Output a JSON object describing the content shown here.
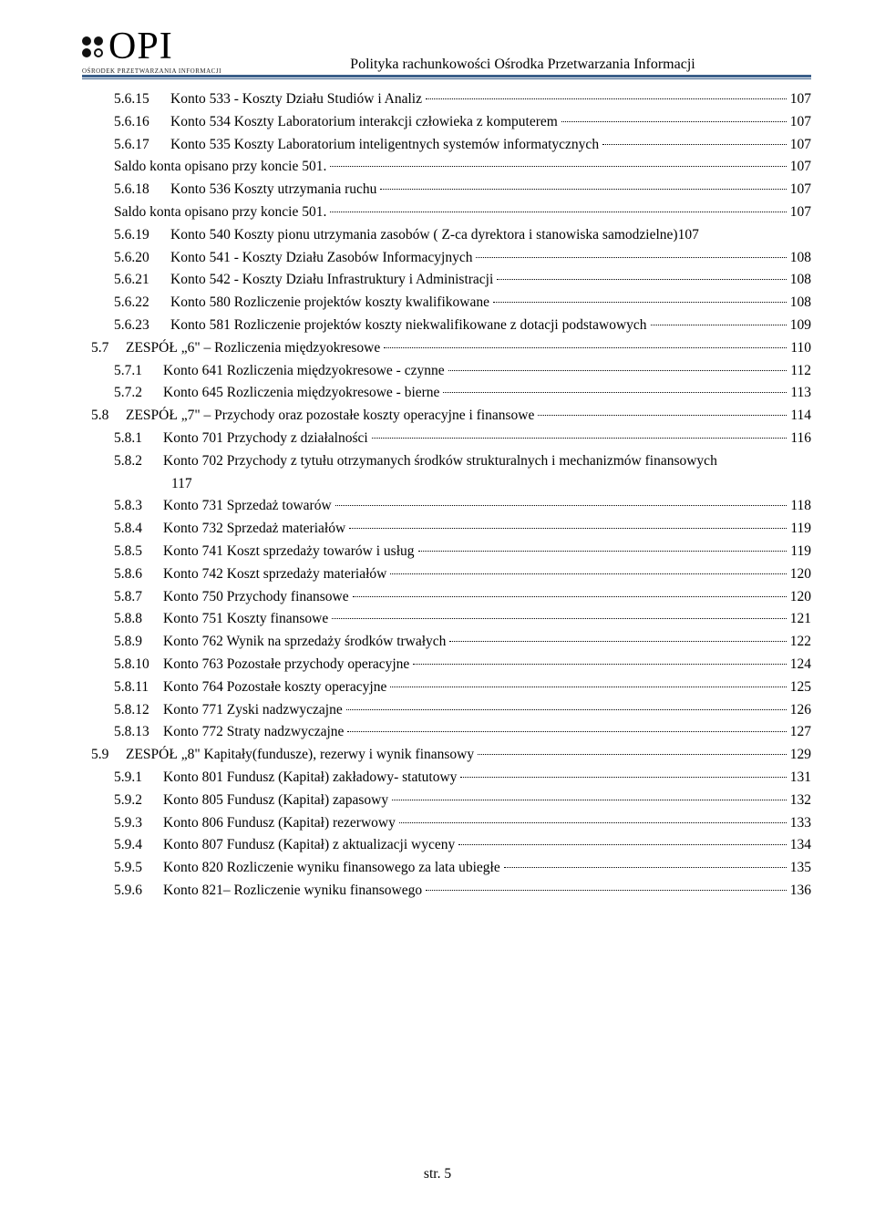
{
  "colors": {
    "rule": "#3b5f8a",
    "text": "#000000",
    "bg": "#ffffff"
  },
  "header": {
    "logo_letters": "OPI",
    "logo_sub": "OŚRODEK PRZETWARZANIA INFORMACJI",
    "title": "Polityka rachunkowości Ośrodka Przetwarzania Informacji"
  },
  "toc": [
    {
      "indent": 2,
      "num": "5.6.15",
      "label": "Konto 533 - Koszty Działu Studiów i Analiz",
      "page": "107"
    },
    {
      "indent": 2,
      "num": "5.6.16",
      "label": "Konto 534 Koszty Laboratorium interakcji człowieka z komputerem",
      "page": "107"
    },
    {
      "indent": 2,
      "num": "5.6.17",
      "label": "Konto 535 Koszty Laboratorium inteligentnych systemów informatycznych",
      "page": "107"
    },
    {
      "indent": 2,
      "num": "",
      "label": "Saldo konta opisano przy koncie 501.",
      "page": "107",
      "noNum": true
    },
    {
      "indent": 2,
      "num": "5.6.18",
      "label": "Konto 536 Koszty utrzymania ruchu",
      "page": "107"
    },
    {
      "indent": 2,
      "num": "",
      "label": "Saldo konta opisano przy koncie 501.",
      "page": "107",
      "noNum": true
    },
    {
      "indent": 2,
      "num": "5.6.19",
      "label": "Konto 540 Koszty pionu utrzymania zasobów ( Z-ca dyrektora i stanowiska samodzielne)",
      "page": "107",
      "noDots": true
    },
    {
      "indent": 2,
      "num": "5.6.20",
      "label": "Konto 541 - Koszty Działu Zasobów Informacyjnych",
      "page": "108"
    },
    {
      "indent": 2,
      "num": "5.6.21",
      "label": "Konto 542 - Koszty Działu Infrastruktury i Administracji",
      "page": "108"
    },
    {
      "indent": 2,
      "num": "5.6.22",
      "label": "Konto 580 Rozliczenie projektów koszty kwalifikowane",
      "page": "108"
    },
    {
      "indent": 2,
      "num": "5.6.23",
      "label": "Konto 581 Rozliczenie projektów koszty niekwalifikowane z dotacji podstawowych",
      "page": "109"
    },
    {
      "indent": 0,
      "num": "5.7",
      "label": "ZESPÓŁ „6\" – Rozliczenia międzyokresowe",
      "page": "110"
    },
    {
      "indent": 1,
      "num": "5.7.1",
      "label": "Konto 641 Rozliczenia międzyokresowe - czynne",
      "page": "112"
    },
    {
      "indent": 1,
      "num": "5.7.2",
      "label": "Konto 645 Rozliczenia międzyokresowe - bierne",
      "page": "113"
    },
    {
      "indent": 0,
      "num": "5.8",
      "label": "ZESPÓŁ „7\" – Przychody oraz pozostałe koszty operacyjne i finansowe",
      "page": "114"
    },
    {
      "indent": 1,
      "num": "5.8.1",
      "label": "Konto 701 Przychody z działalności",
      "page": "116"
    },
    {
      "indent": 1,
      "num": "5.8.2",
      "label": "Konto 702 Przychody z tytułu otrzymanych środków strukturalnych i mechanizmów finansowych",
      "page": "",
      "noDots": true
    },
    {
      "indent": -1,
      "num": "",
      "label": "117",
      "page": "",
      "textOnly": true
    },
    {
      "indent": 1,
      "num": "5.8.3",
      "label": "Konto 731 Sprzedaż towarów",
      "page": "118"
    },
    {
      "indent": 1,
      "num": "5.8.4",
      "label": "Konto 732 Sprzedaż materiałów",
      "page": "119"
    },
    {
      "indent": 1,
      "num": "5.8.5",
      "label": "Konto 741 Koszt sprzedaży towarów i usług",
      "page": "119"
    },
    {
      "indent": 1,
      "num": "5.8.6",
      "label": "Konto 742 Koszt sprzedaży materiałów",
      "page": "120"
    },
    {
      "indent": 1,
      "num": "5.8.7",
      "label": "Konto 750 Przychody finansowe",
      "page": "120"
    },
    {
      "indent": 1,
      "num": "5.8.8",
      "label": "Konto 751 Koszty finansowe",
      "page": "121"
    },
    {
      "indent": 1,
      "num": "5.8.9",
      "label": "Konto 762 Wynik na sprzedaży środków trwałych",
      "page": "122"
    },
    {
      "indent": 1,
      "num": "5.8.10",
      "label": "Konto 763 Pozostałe przychody operacyjne",
      "page": "124"
    },
    {
      "indent": 1,
      "num": "5.8.11",
      "label": "Konto 764 Pozostałe koszty operacyjne",
      "page": "125"
    },
    {
      "indent": 1,
      "num": "5.8.12",
      "label": "Konto 771 Zyski nadzwyczajne",
      "page": "126"
    },
    {
      "indent": 1,
      "num": "5.8.13",
      "label": "Konto 772 Straty nadzwyczajne",
      "page": "127"
    },
    {
      "indent": 0,
      "num": "5.9",
      "label": "ZESPÓŁ „8\" Kapitały(fundusze), rezerwy i wynik finansowy",
      "page": "129"
    },
    {
      "indent": 1,
      "num": "5.9.1",
      "label": "Konto 801 Fundusz (Kapitał) zakładowy- statutowy",
      "page": "131"
    },
    {
      "indent": 1,
      "num": "5.9.2",
      "label": "Konto 805 Fundusz (Kapitał) zapasowy",
      "page": "132"
    },
    {
      "indent": 1,
      "num": "5.9.3",
      "label": "Konto 806 Fundusz (Kapitał) rezerwowy",
      "page": "133"
    },
    {
      "indent": 1,
      "num": "5.9.4",
      "label": "Konto 807 Fundusz (Kapitał) z aktualizacji wyceny",
      "page": "134"
    },
    {
      "indent": 1,
      "num": "5.9.5",
      "label": "Konto 820 Rozliczenie wyniku finansowego za lata ubiegłe",
      "page": "135"
    },
    {
      "indent": 1,
      "num": "5.9.6",
      "label": "Konto 821– Rozliczenie wyniku finansowego",
      "page": "136"
    }
  ],
  "footer": "str. 5"
}
